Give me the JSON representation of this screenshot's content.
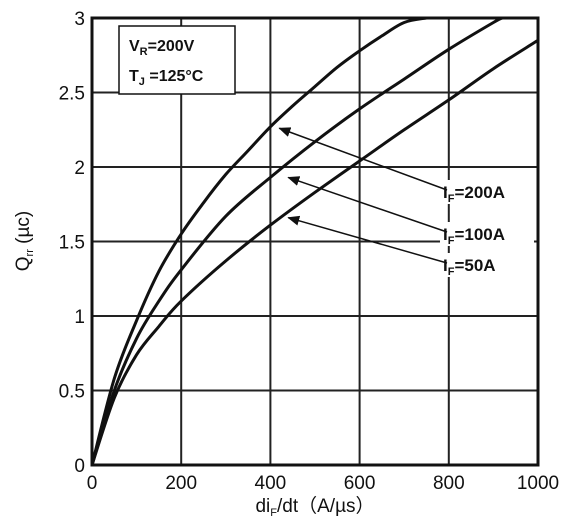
{
  "chart_data": {
    "type": "line",
    "title": "",
    "xlabel": {
      "main": "di",
      "sub": "F",
      "rest": "/dt（A/µs）"
    },
    "ylabel": {
      "main": "Q",
      "sub": "rr",
      "rest": " (µc)"
    },
    "xlim": [
      0,
      1000
    ],
    "ylim": [
      0,
      3
    ],
    "x_ticks": [
      0,
      200,
      400,
      600,
      800,
      1000
    ],
    "x_tick_labels": [
      "0",
      "200",
      "400",
      "600",
      "800",
      "1000"
    ],
    "y_ticks": [
      0,
      0.5,
      1,
      1.5,
      2,
      2.5,
      3
    ],
    "y_tick_labels": [
      "0",
      "0.5",
      "1",
      "1.5",
      "2",
      "2.5",
      "3"
    ],
    "grid": true,
    "conditions": [
      {
        "main": "V",
        "sub": "R",
        "rest": "=200V"
      },
      {
        "main": "T",
        "sub": "J",
        "rest": " =125°C"
      }
    ],
    "series": [
      {
        "name": {
          "main": "I",
          "sub": "F",
          "rest": "=200A"
        },
        "x": [
          0,
          50,
          100,
          150,
          200,
          250,
          300,
          350,
          400,
          450,
          500,
          550,
          600,
          650,
          700,
          750
        ],
        "y": [
          0,
          0.58,
          0.97,
          1.3,
          1.55,
          1.76,
          1.95,
          2.11,
          2.27,
          2.41,
          2.54,
          2.67,
          2.78,
          2.88,
          2.97,
          3.0
        ]
      },
      {
        "name": {
          "main": "I",
          "sub": "F",
          "rest": "=100A"
        },
        "x": [
          0,
          50,
          100,
          150,
          200,
          300,
          400,
          500,
          600,
          700,
          800,
          900,
          920
        ],
        "y": [
          0,
          0.5,
          0.85,
          1.1,
          1.31,
          1.67,
          1.93,
          2.17,
          2.39,
          2.59,
          2.79,
          2.97,
          3.0
        ]
      },
      {
        "name": {
          "main": "I",
          "sub": "F",
          "rest": "=50A"
        },
        "x": [
          0,
          50,
          100,
          150,
          200,
          300,
          400,
          500,
          600,
          700,
          800,
          900,
          1000
        ],
        "y": [
          0,
          0.45,
          0.74,
          0.93,
          1.1,
          1.37,
          1.61,
          1.83,
          2.04,
          2.25,
          2.45,
          2.66,
          2.85
        ]
      }
    ],
    "annotations": [
      {
        "series_index": 0,
        "arrow_to": [
          420,
          2.26
        ]
      },
      {
        "series_index": 1,
        "arrow_to": [
          440,
          1.93
        ]
      },
      {
        "series_index": 2,
        "arrow_to": [
          440,
          1.66
        ]
      }
    ]
  }
}
